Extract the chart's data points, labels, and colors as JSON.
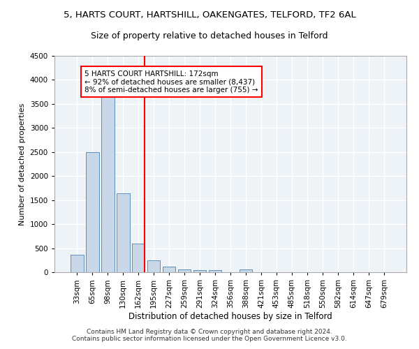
{
  "title1": "5, HARTS COURT, HARTSHILL, OAKENGATES, TELFORD, TF2 6AL",
  "title2": "Size of property relative to detached houses in Telford",
  "xlabel": "Distribution of detached houses by size in Telford",
  "ylabel": "Number of detached properties",
  "categories": [
    "33sqm",
    "65sqm",
    "98sqm",
    "130sqm",
    "162sqm",
    "195sqm",
    "227sqm",
    "259sqm",
    "291sqm",
    "324sqm",
    "356sqm",
    "388sqm",
    "421sqm",
    "453sqm",
    "485sqm",
    "518sqm",
    "550sqm",
    "582sqm",
    "614sqm",
    "647sqm",
    "679sqm"
  ],
  "values": [
    370,
    2500,
    3750,
    1640,
    600,
    240,
    110,
    60,
    45,
    45,
    0,
    55,
    0,
    0,
    0,
    0,
    0,
    0,
    0,
    0,
    0
  ],
  "bar_color": "#c8d8e8",
  "bar_edge_color": "#5a8fc0",
  "vline_color": "red",
  "vline_x_index": 4,
  "annotation_line1": "5 HARTS COURT HARTSHILL: 172sqm",
  "annotation_line2": "← 92% of detached houses are smaller (8,437)",
  "annotation_line3": "8% of semi-detached houses are larger (755) →",
  "annotation_box_color": "white",
  "annotation_box_edge": "red",
  "ylim": [
    0,
    4500
  ],
  "yticks": [
    0,
    500,
    1000,
    1500,
    2000,
    2500,
    3000,
    3500,
    4000,
    4500
  ],
  "footer": "Contains HM Land Registry data © Crown copyright and database right 2024.\nContains public sector information licensed under the Open Government Licence v3.0.",
  "bg_color": "#eef3f8",
  "grid_color": "white",
  "title1_fontsize": 9.5,
  "title2_fontsize": 9,
  "xlabel_fontsize": 8.5,
  "ylabel_fontsize": 8,
  "tick_fontsize": 7.5,
  "annotation_fontsize": 7.5,
  "footer_fontsize": 6.5
}
